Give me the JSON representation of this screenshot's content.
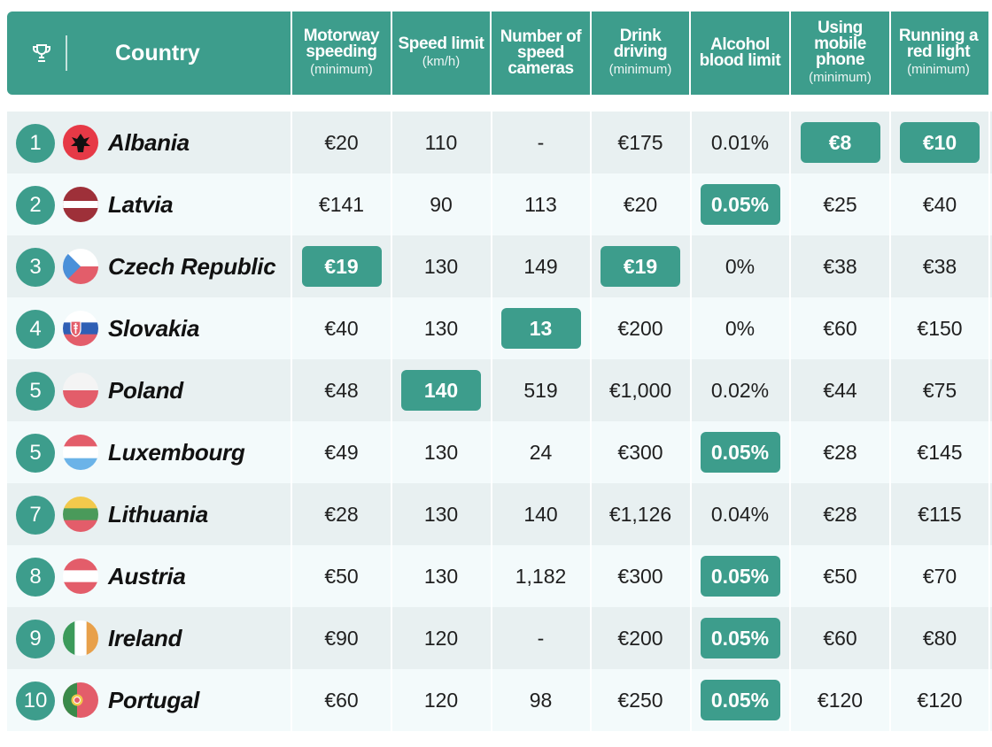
{
  "header": {
    "country_label": "Country",
    "columns": [
      {
        "title": "Motorway speeding",
        "sub": "(minimum)"
      },
      {
        "title": "Speed limit",
        "sub": "(km/h)"
      },
      {
        "title": "Number of speed cameras",
        "sub": ""
      },
      {
        "title": "Drink driving",
        "sub": "(minimum)"
      },
      {
        "title": "Alcohol blood limit",
        "sub": ""
      },
      {
        "title": "Using mobile phone",
        "sub": "(minimum)"
      },
      {
        "title": "Running a red light",
        "sub": "(minimum)"
      }
    ]
  },
  "colors": {
    "accent": "#3d9d8c",
    "row_odd": "#e8f0f1",
    "row_even": "#f3fafb"
  },
  "rows": [
    {
      "rank": "1",
      "country": "Albania",
      "flag": "albania-flag-icon",
      "values": [
        "€20",
        "110",
        "-",
        "€175",
        "0.01%",
        "€8",
        "€10"
      ],
      "highlight": [
        5,
        6
      ]
    },
    {
      "rank": "2",
      "country": "Latvia",
      "flag": "latvia-flag-icon",
      "values": [
        "€141",
        "90",
        "113",
        "€20",
        "0.05%",
        "€25",
        "€40"
      ],
      "highlight": [
        4
      ]
    },
    {
      "rank": "3",
      "country": "Czech Republic",
      "flag": "czech-republic-flag-icon",
      "values": [
        "€19",
        "130",
        "149",
        "€19",
        "0%",
        "€38",
        "€38"
      ],
      "highlight": [
        0,
        3
      ]
    },
    {
      "rank": "4",
      "country": "Slovakia",
      "flag": "slovakia-flag-icon",
      "values": [
        "€40",
        "130",
        "13",
        "€200",
        "0%",
        "€60",
        "€150"
      ],
      "highlight": [
        2
      ]
    },
    {
      "rank": "5",
      "country": "Poland",
      "flag": "poland-flag-icon",
      "values": [
        "€48",
        "140",
        "519",
        "€1,000",
        "0.02%",
        "€44",
        "€75"
      ],
      "highlight": [
        1
      ]
    },
    {
      "rank": "5",
      "country": "Luxembourg",
      "flag": "luxembourg-flag-icon",
      "values": [
        "€49",
        "130",
        "24",
        "€300",
        "0.05%",
        "€28",
        "€145"
      ],
      "highlight": [
        4
      ]
    },
    {
      "rank": "7",
      "country": "Lithuania",
      "flag": "lithuania-flag-icon",
      "values": [
        "€28",
        "130",
        "140",
        "€1,126",
        "0.04%",
        "€28",
        "€115"
      ],
      "highlight": []
    },
    {
      "rank": "8",
      "country": "Austria",
      "flag": "austria-flag-icon",
      "values": [
        "€50",
        "130",
        "1,182",
        "€300",
        "0.05%",
        "€50",
        "€70"
      ],
      "highlight": [
        4
      ]
    },
    {
      "rank": "9",
      "country": "Ireland",
      "flag": "ireland-flag-icon",
      "values": [
        "€90",
        "120",
        "-",
        "€200",
        "0.05%",
        "€60",
        "€80"
      ],
      "highlight": [
        4
      ]
    },
    {
      "rank": "10",
      "country": "Portugal",
      "flag": "portugal-flag-icon",
      "values": [
        "€60",
        "120",
        "98",
        "€250",
        "0.05%",
        "€120",
        "€120"
      ],
      "highlight": [
        4
      ]
    }
  ]
}
